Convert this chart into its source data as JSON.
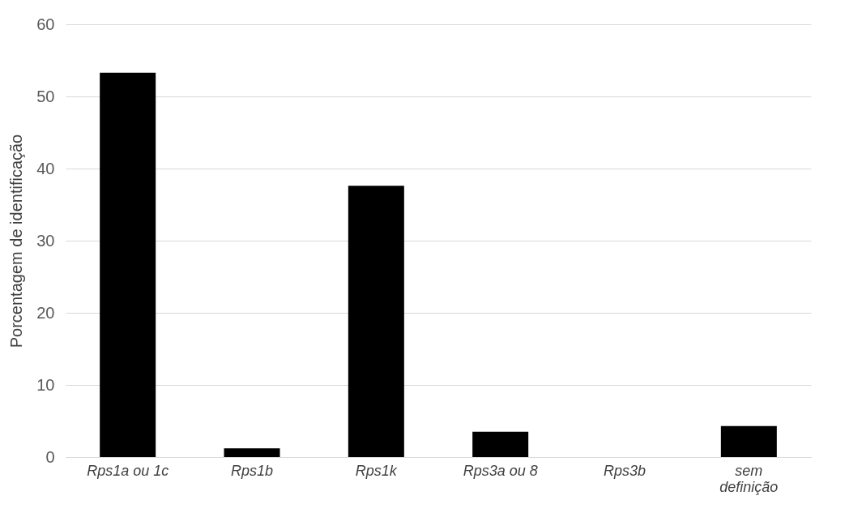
{
  "chart_data": {
    "type": "bar",
    "ylabel": "Porcentagem de identificação",
    "categories": [
      "Rps1a ou 1c",
      "Rps1b",
      "Rps1k",
      "Rps3a ou 8",
      "Rps3b",
      "sem definição"
    ],
    "values": [
      53.3,
      1.2,
      37.6,
      3.5,
      0,
      4.3
    ],
    "color": "#000000",
    "ylim": [
      0,
      60
    ],
    "yticks": [
      0,
      10,
      20,
      30,
      40,
      50,
      60
    ],
    "grid": "y"
  }
}
